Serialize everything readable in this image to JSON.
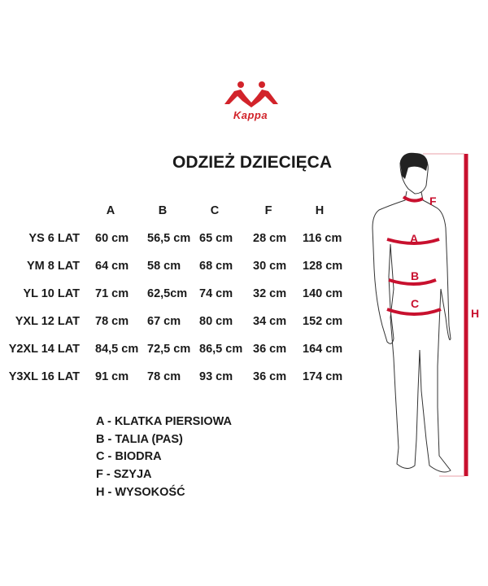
{
  "brand": {
    "logo_text": "Kappa",
    "color": "#d2232a"
  },
  "title": "ODZIEŻ DZIECIĘCA",
  "table": {
    "columns": [
      "A",
      "B",
      "C",
      "F",
      "H"
    ],
    "rows": [
      {
        "size": "YS 6 LAT",
        "values": [
          "60 cm",
          "56,5 cm",
          "65 cm",
          "28 cm",
          "116 cm"
        ]
      },
      {
        "size": "YM 8 LAT",
        "values": [
          "64 cm",
          "58 cm",
          "68 cm",
          "30 cm",
          "128 cm"
        ]
      },
      {
        "size": "YL 10 LAT",
        "values": [
          "71 cm",
          "62,5cm",
          "74 cm",
          "32 cm",
          "140 cm"
        ]
      },
      {
        "size": "YXL 12 LAT",
        "values": [
          "78 cm",
          "67 cm",
          "80 cm",
          "34 cm",
          "152 cm"
        ]
      },
      {
        "size": "Y2XL 14 LAT",
        "values": [
          "84,5 cm",
          "72,5 cm",
          "86,5 cm",
          "36 cm",
          "164 cm"
        ]
      },
      {
        "size": "Y3XL 16 LAT",
        "values": [
          "91 cm",
          "78 cm",
          "93 cm",
          "36 cm",
          "174 cm"
        ]
      }
    ]
  },
  "legend": [
    "A - KLATKA PIERSIOWA",
    "B - TALIA (PAS)",
    "C - BIODRA",
    "F - SZYJA",
    "H - WYSOKOŚĆ"
  ],
  "figure": {
    "labels": {
      "A": "A",
      "B": "B",
      "C": "C",
      "F": "F",
      "H": "H"
    },
    "accent": "#c8102e"
  }
}
